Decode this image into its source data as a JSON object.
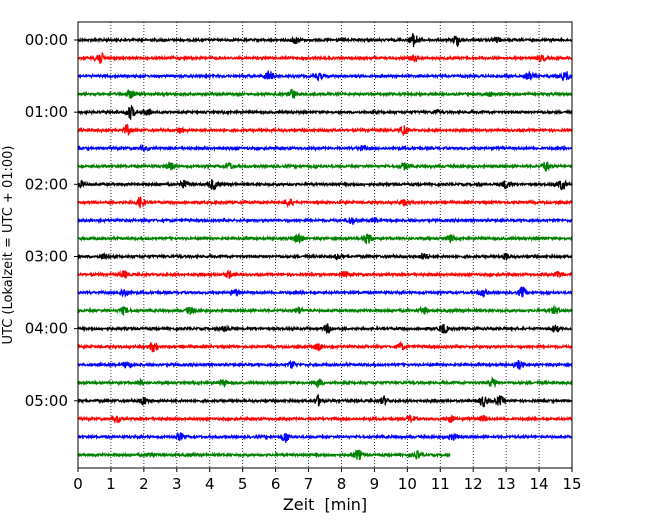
{
  "chart_data": {
    "type": "line",
    "subtype": "helicorder-seismogram",
    "title": "",
    "xlabel": "Zeit  [min]",
    "ylabel": "UTC (Lokalzeit = UTC + 01:00)",
    "xlim": [
      0,
      15
    ],
    "x_ticks": [
      "0",
      "1",
      "2",
      "3",
      "4",
      "5",
      "6",
      "7",
      "8",
      "9",
      "10",
      "11",
      "12",
      "13",
      "14",
      "15"
    ],
    "vertical_grid": true,
    "grid_style": "dotted",
    "row_minutes": 15,
    "trace_colors": [
      "#000000",
      "#ff0000",
      "#0000ff",
      "#008000"
    ],
    "y_ticks": [
      {
        "label": "00:00",
        "row": 0
      },
      {
        "label": "01:00",
        "row": 4
      },
      {
        "label": "02:00",
        "row": 8
      },
      {
        "label": "03:00",
        "row": 12
      },
      {
        "label": "04:00",
        "row": 16
      },
      {
        "label": "05:00",
        "row": 20
      }
    ],
    "series": [
      {
        "start": "00:00",
        "end_min": 15,
        "bursts": [
          [
            6.6,
            0.5
          ],
          [
            10.2,
            1.0
          ],
          [
            11.5,
            0.8
          ],
          [
            12.7,
            0.4
          ]
        ]
      },
      {
        "start": "00:15",
        "end_min": 15,
        "bursts": [
          [
            0.65,
            1.0
          ],
          [
            10.2,
            0.4
          ],
          [
            14.1,
            0.4
          ]
        ]
      },
      {
        "start": "00:30",
        "end_min": 15,
        "bursts": [
          [
            5.8,
            0.8
          ],
          [
            7.3,
            0.5
          ],
          [
            13.7,
            0.6
          ],
          [
            14.8,
            0.7
          ]
        ]
      },
      {
        "start": "00:45",
        "end_min": 15,
        "bursts": [
          [
            1.6,
            0.6
          ],
          [
            6.5,
            0.7
          ],
          [
            12.5,
            0.3
          ]
        ]
      },
      {
        "start": "01:00",
        "end_min": 15,
        "bursts": [
          [
            1.6,
            1.0
          ],
          [
            2.1,
            0.5
          ],
          [
            10.9,
            0.3
          ]
        ]
      },
      {
        "start": "01:15",
        "end_min": 15,
        "bursts": [
          [
            1.5,
            0.7
          ],
          [
            3.1,
            0.4
          ],
          [
            9.9,
            0.8
          ]
        ]
      },
      {
        "start": "01:30",
        "end_min": 15,
        "bursts": [
          [
            2.0,
            0.3
          ],
          [
            8.6,
            0.3
          ]
        ]
      },
      {
        "start": "01:45",
        "end_min": 15,
        "bursts": [
          [
            2.8,
            0.6
          ],
          [
            4.6,
            0.5
          ],
          [
            9.9,
            0.5
          ],
          [
            14.2,
            0.7
          ]
        ]
      },
      {
        "start": "02:00",
        "end_min": 15,
        "bursts": [
          [
            0.1,
            0.4
          ],
          [
            3.2,
            0.6
          ],
          [
            4.1,
            0.8
          ],
          [
            13.0,
            0.6
          ],
          [
            14.7,
            0.8
          ]
        ]
      },
      {
        "start": "02:15",
        "end_min": 15,
        "bursts": [
          [
            1.9,
            0.8
          ],
          [
            6.4,
            0.6
          ],
          [
            9.9,
            0.5
          ]
        ]
      },
      {
        "start": "02:30",
        "end_min": 15,
        "bursts": [
          [
            8.3,
            0.5
          ],
          [
            9.0,
            0.4
          ]
        ]
      },
      {
        "start": "02:45",
        "end_min": 15,
        "bursts": [
          [
            6.7,
            0.7
          ],
          [
            8.8,
            0.9
          ],
          [
            11.3,
            0.5
          ]
        ]
      },
      {
        "start": "03:00",
        "end_min": 15,
        "bursts": [
          [
            0.8,
            0.4
          ],
          [
            7.9,
            0.4
          ],
          [
            10.5,
            0.5
          ],
          [
            13.0,
            0.4
          ]
        ]
      },
      {
        "start": "03:15",
        "end_min": 15,
        "bursts": [
          [
            1.4,
            0.5
          ],
          [
            4.6,
            0.5
          ],
          [
            8.1,
            0.4
          ],
          [
            14.6,
            0.4
          ]
        ]
      },
      {
        "start": "03:30",
        "end_min": 15,
        "bursts": [
          [
            1.4,
            0.6
          ],
          [
            4.8,
            0.5
          ],
          [
            12.3,
            0.5
          ],
          [
            13.5,
            0.8
          ]
        ]
      },
      {
        "start": "03:45",
        "end_min": 15,
        "bursts": [
          [
            1.4,
            0.5
          ],
          [
            3.4,
            0.5
          ],
          [
            6.7,
            0.5
          ],
          [
            10.5,
            0.5
          ],
          [
            14.5,
            0.5
          ]
        ]
      },
      {
        "start": "04:00",
        "end_min": 15,
        "bursts": [
          [
            4.5,
            0.5
          ],
          [
            7.6,
            0.6
          ],
          [
            11.1,
            0.7
          ],
          [
            14.5,
            0.5
          ]
        ]
      },
      {
        "start": "04:15",
        "end_min": 15,
        "bursts": [
          [
            2.3,
            0.8
          ],
          [
            7.3,
            0.5
          ],
          [
            9.8,
            0.5
          ]
        ]
      },
      {
        "start": "04:30",
        "end_min": 15,
        "bursts": [
          [
            1.5,
            0.5
          ],
          [
            6.5,
            0.5
          ],
          [
            13.4,
            0.6
          ]
        ]
      },
      {
        "start": "04:45",
        "end_min": 15,
        "bursts": [
          [
            1.9,
            0.4
          ],
          [
            4.4,
            0.5
          ],
          [
            7.3,
            0.5
          ],
          [
            12.6,
            0.6
          ]
        ]
      },
      {
        "start": "05:00",
        "end_min": 15,
        "bursts": [
          [
            2.0,
            0.6
          ],
          [
            7.3,
            0.7
          ],
          [
            9.3,
            0.6
          ],
          [
            12.3,
            0.8
          ],
          [
            12.8,
            0.7
          ]
        ]
      },
      {
        "start": "05:15",
        "end_min": 15,
        "bursts": [
          [
            1.2,
            0.5
          ],
          [
            10.1,
            0.5
          ],
          [
            11.3,
            0.5
          ],
          [
            12.3,
            0.4
          ]
        ]
      },
      {
        "start": "05:30",
        "end_min": 15,
        "bursts": [
          [
            3.1,
            0.5
          ],
          [
            6.3,
            0.8
          ],
          [
            11.4,
            0.5
          ]
        ]
      },
      {
        "start": "05:45",
        "end_min": 11.3,
        "bursts": [
          [
            2.2,
            0.4
          ],
          [
            8.5,
            0.7
          ],
          [
            10.3,
            0.5
          ]
        ]
      }
    ]
  }
}
